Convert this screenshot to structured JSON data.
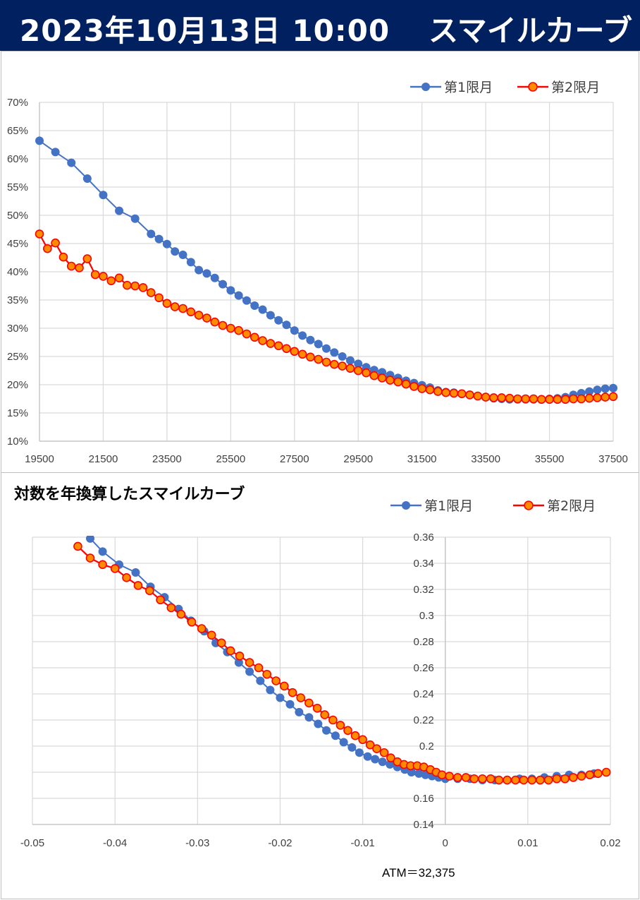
{
  "header": {
    "date": "2023年10月13日 10:00",
    "title": "スマイルカーブ"
  },
  "chart_data": [
    {
      "type": "line",
      "title": "",
      "xlabel": "",
      "ylabel": "",
      "xlim": [
        19500,
        37500
      ],
      "ylim": [
        0.1,
        0.7
      ],
      "x_ticks": [
        19500,
        21500,
        23500,
        25500,
        27500,
        29500,
        31500,
        33500,
        35500,
        37500
      ],
      "x_tick_labels": [
        "19500",
        "21500",
        "23500",
        "25500",
        "27500",
        "29500",
        "31500",
        "33500",
        "35500",
        "37500"
      ],
      "y_ticks": [
        0.1,
        0.15,
        0.2,
        0.25,
        0.3,
        0.35,
        0.4,
        0.45,
        0.5,
        0.55,
        0.6,
        0.65,
        0.7
      ],
      "y_tick_labels": [
        "10%",
        "15%",
        "20%",
        "25%",
        "30%",
        "35%",
        "40%",
        "45%",
        "50%",
        "55%",
        "60%",
        "65%",
        "70%"
      ],
      "grid": true,
      "legend_position": "top-right",
      "series": [
        {
          "name": "第1限月",
          "color": "#4472C4",
          "x": [
            19500,
            20000,
            20500,
            21000,
            21500,
            22000,
            22500,
            23000,
            23250,
            23500,
            23750,
            24000,
            24250,
            24500,
            24750,
            25000,
            25250,
            25500,
            25750,
            26000,
            26250,
            26500,
            26750,
            27000,
            27250,
            27500,
            27750,
            28000,
            28250,
            28500,
            28750,
            29000,
            29250,
            29500,
            29750,
            30000,
            30250,
            30500,
            30750,
            31000,
            31250,
            31500,
            31750,
            32000,
            32250,
            32500,
            32750,
            33000,
            33250,
            33500,
            33750,
            34000,
            34250,
            34500,
            34750,
            35000,
            35250,
            35500,
            35750,
            36000,
            36250,
            36500,
            36750,
            37000,
            37250,
            37500
          ],
          "y": [
            0.632,
            0.612,
            0.593,
            0.565,
            0.536,
            0.508,
            0.494,
            0.467,
            0.458,
            0.449,
            0.436,
            0.43,
            0.417,
            0.403,
            0.397,
            0.389,
            0.378,
            0.367,
            0.358,
            0.349,
            0.34,
            0.333,
            0.323,
            0.314,
            0.306,
            0.296,
            0.287,
            0.279,
            0.272,
            0.264,
            0.257,
            0.25,
            0.243,
            0.237,
            0.231,
            0.226,
            0.222,
            0.217,
            0.212,
            0.207,
            0.203,
            0.199,
            0.195,
            0.19,
            0.187,
            0.186,
            0.184,
            0.182,
            0.18,
            0.178,
            0.176,
            0.175,
            0.174,
            0.174,
            0.174,
            0.174,
            0.174,
            0.175,
            0.176,
            0.178,
            0.182,
            0.185,
            0.188,
            0.191,
            0.193,
            0.194
          ]
        },
        {
          "name": "第2限月",
          "color": "#FF0000",
          "x": [
            19500,
            19750,
            20000,
            20250,
            20500,
            20750,
            21000,
            21250,
            21500,
            21750,
            22000,
            22250,
            22500,
            22750,
            23000,
            23250,
            23500,
            23750,
            24000,
            24250,
            24500,
            24750,
            25000,
            25250,
            25500,
            25750,
            26000,
            26250,
            26500,
            26750,
            27000,
            27250,
            27500,
            27750,
            28000,
            28250,
            28500,
            28750,
            29000,
            29250,
            29500,
            29750,
            30000,
            30250,
            30500,
            30750,
            31000,
            31250,
            31500,
            31750,
            32000,
            32250,
            32500,
            32750,
            33000,
            33250,
            33500,
            33750,
            34000,
            34250,
            34500,
            34750,
            35000,
            35250,
            35500,
            35750,
            36000,
            36250,
            36500,
            36750,
            37000,
            37250,
            37500
          ],
          "y": [
            0.467,
            0.441,
            0.451,
            0.426,
            0.41,
            0.407,
            0.423,
            0.395,
            0.392,
            0.384,
            0.389,
            0.376,
            0.375,
            0.372,
            0.363,
            0.354,
            0.344,
            0.338,
            0.335,
            0.329,
            0.323,
            0.318,
            0.311,
            0.305,
            0.3,
            0.296,
            0.29,
            0.284,
            0.278,
            0.273,
            0.269,
            0.264,
            0.259,
            0.254,
            0.249,
            0.245,
            0.24,
            0.236,
            0.233,
            0.229,
            0.225,
            0.221,
            0.216,
            0.212,
            0.208,
            0.205,
            0.201,
            0.197,
            0.193,
            0.191,
            0.188,
            0.186,
            0.185,
            0.184,
            0.182,
            0.18,
            0.178,
            0.177,
            0.177,
            0.176,
            0.175,
            0.175,
            0.175,
            0.174,
            0.174,
            0.174,
            0.174,
            0.175,
            0.175,
            0.176,
            0.177,
            0.178,
            0.179
          ]
        }
      ]
    },
    {
      "type": "line",
      "title": "対数を年換算したスマイルカーブ",
      "xlabel": "",
      "ylabel": "",
      "xlim": [
        -0.05,
        0.02
      ],
      "ylim": [
        0.14,
        0.36
      ],
      "x_ticks": [
        -0.05,
        -0.04,
        -0.03,
        -0.02,
        -0.01,
        0,
        0.01,
        0.02
      ],
      "x_tick_labels": [
        "-0.05",
        "-0.04",
        "-0.03",
        "-0.02",
        "-0.01",
        "0",
        "0.01",
        "0.02"
      ],
      "y_ticks": [
        0.14,
        0.16,
        0.18,
        0.2,
        0.22,
        0.24,
        0.26,
        0.28,
        0.3,
        0.32,
        0.34,
        0.36
      ],
      "y_tick_labels": [
        "0.14",
        "0.16",
        "0.18",
        "0.2",
        "0.22",
        "0.24",
        "0.26",
        "0.28",
        "0.3",
        "0.32",
        "0.34",
        "0.36"
      ],
      "grid": true,
      "legend_position": "top-right",
      "annotation": "ATM＝32,375",
      "series": [
        {
          "name": "第1限月",
          "color": "#4472C4",
          "x": [
            -0.043,
            -0.0415,
            -0.0395,
            -0.0375,
            -0.0357,
            -0.034,
            -0.0323,
            -0.0308,
            -0.0292,
            -0.0278,
            -0.0264,
            -0.025,
            -0.0237,
            -0.0224,
            -0.0212,
            -0.02,
            -0.0188,
            -0.0177,
            -0.0165,
            -0.0154,
            -0.0144,
            -0.0133,
            -0.0123,
            -0.0113,
            -0.0104,
            -0.0094,
            -0.0085,
            -0.0076,
            -0.0067,
            -0.0058,
            -0.0049,
            -0.0041,
            -0.0032,
            -0.0024,
            -0.0016,
            -0.0008,
            0.0,
            0.0015,
            0.003,
            0.0045,
            0.006,
            0.0075,
            0.009,
            0.0105,
            0.012,
            0.0135,
            0.015,
            0.0165,
            0.018,
            0.0195
          ],
          "y": [
            0.359,
            0.349,
            0.339,
            0.333,
            0.322,
            0.314,
            0.305,
            0.296,
            0.288,
            0.279,
            0.272,
            0.264,
            0.257,
            0.25,
            0.243,
            0.237,
            0.232,
            0.226,
            0.222,
            0.217,
            0.212,
            0.208,
            0.203,
            0.199,
            0.195,
            0.192,
            0.19,
            0.188,
            0.186,
            0.184,
            0.182,
            0.18,
            0.179,
            0.178,
            0.177,
            0.176,
            0.175,
            0.175,
            0.175,
            0.174,
            0.174,
            0.174,
            0.175,
            0.175,
            0.176,
            0.177,
            0.178,
            0.178,
            0.179,
            0.18
          ]
        },
        {
          "name": "第2限月",
          "color": "#FF0000",
          "x": [
            -0.0445,
            -0.043,
            -0.0415,
            -0.04,
            -0.0386,
            -0.0372,
            -0.0358,
            -0.0345,
            -0.0332,
            -0.032,
            -0.0307,
            -0.0295,
            -0.0283,
            -0.0271,
            -0.026,
            -0.0249,
            -0.0237,
            -0.0226,
            -0.0216,
            -0.0205,
            -0.0195,
            -0.0185,
            -0.0175,
            -0.0165,
            -0.0155,
            -0.0146,
            -0.0136,
            -0.0127,
            -0.0118,
            -0.0109,
            -0.01,
            -0.0091,
            -0.0083,
            -0.0074,
            -0.0066,
            -0.0058,
            -0.005,
            -0.0042,
            -0.0034,
            -0.0026,
            -0.0018,
            -0.0011,
            -0.0004,
            0.0005,
            0.0015,
            0.0025,
            0.0035,
            0.0045,
            0.0055,
            0.0065,
            0.0075,
            0.0085,
            0.0095,
            0.0105,
            0.0115,
            0.0125,
            0.0135,
            0.0145,
            0.0155,
            0.0165,
            0.0175,
            0.0185,
            0.0195
          ],
          "y": [
            0.353,
            0.344,
            0.339,
            0.336,
            0.329,
            0.323,
            0.319,
            0.312,
            0.306,
            0.301,
            0.295,
            0.29,
            0.285,
            0.279,
            0.273,
            0.269,
            0.264,
            0.26,
            0.255,
            0.25,
            0.246,
            0.241,
            0.237,
            0.233,
            0.229,
            0.224,
            0.22,
            0.216,
            0.212,
            0.208,
            0.205,
            0.201,
            0.198,
            0.195,
            0.191,
            0.188,
            0.186,
            0.185,
            0.185,
            0.184,
            0.182,
            0.18,
            0.178,
            0.177,
            0.176,
            0.176,
            0.175,
            0.175,
            0.175,
            0.174,
            0.174,
            0.174,
            0.174,
            0.174,
            0.174,
            0.174,
            0.175,
            0.175,
            0.176,
            0.177,
            0.178,
            0.179,
            0.18
          ]
        }
      ]
    }
  ]
}
